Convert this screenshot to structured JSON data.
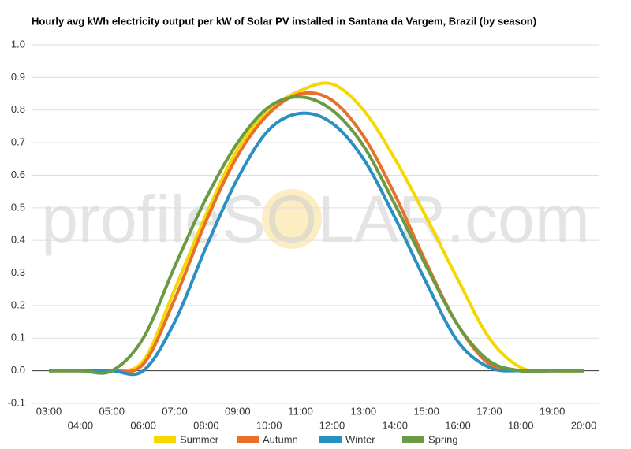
{
  "chart_data": {
    "type": "line",
    "title": "Hourly avg kWh electricity output per kW of Solar PV installed in Santana da Vargem, Brazil (by season)",
    "watermark": "profileSOLAR.com",
    "categories": [
      "03:00",
      "04:00",
      "05:00",
      "06:00",
      "07:00",
      "08:00",
      "09:00",
      "10:00",
      "11:00",
      "12:00",
      "13:00",
      "14:00",
      "15:00",
      "16:00",
      "17:00",
      "18:00",
      "19:00",
      "20:00"
    ],
    "series": [
      {
        "name": "Summer",
        "color": "#f5d800",
        "values": [
          0,
          0,
          0,
          0.03,
          0.25,
          0.48,
          0.68,
          0.8,
          0.86,
          0.88,
          0.8,
          0.65,
          0.47,
          0.28,
          0.1,
          0.01,
          0,
          0
        ]
      },
      {
        "name": "Autumn",
        "color": "#e8702a",
        "values": [
          0,
          0,
          0,
          0.02,
          0.22,
          0.46,
          0.66,
          0.79,
          0.85,
          0.83,
          0.72,
          0.54,
          0.33,
          0.14,
          0.02,
          0,
          0,
          0
        ]
      },
      {
        "name": "Winter",
        "color": "#2a8fc1",
        "values": [
          0,
          0,
          0,
          0,
          0.15,
          0.38,
          0.59,
          0.74,
          0.79,
          0.76,
          0.65,
          0.47,
          0.27,
          0.09,
          0.01,
          0,
          0,
          0
        ]
      },
      {
        "name": "Spring",
        "color": "#6a9a45",
        "values": [
          0,
          0,
          0,
          0.1,
          0.32,
          0.53,
          0.7,
          0.81,
          0.84,
          0.8,
          0.69,
          0.51,
          0.32,
          0.14,
          0.03,
          0,
          0,
          0
        ]
      }
    ],
    "ylim": [
      -0.1,
      1.0
    ],
    "yticks": [
      -0.1,
      {
        "value": 0,
        "label": "0.0"
      },
      0.1,
      0.2,
      0.3,
      0.4,
      0.5,
      0.6,
      0.7,
      0.8,
      0.9,
      {
        "value": 1,
        "label": "1.0"
      }
    ],
    "grid": true,
    "legend": "bottom"
  }
}
